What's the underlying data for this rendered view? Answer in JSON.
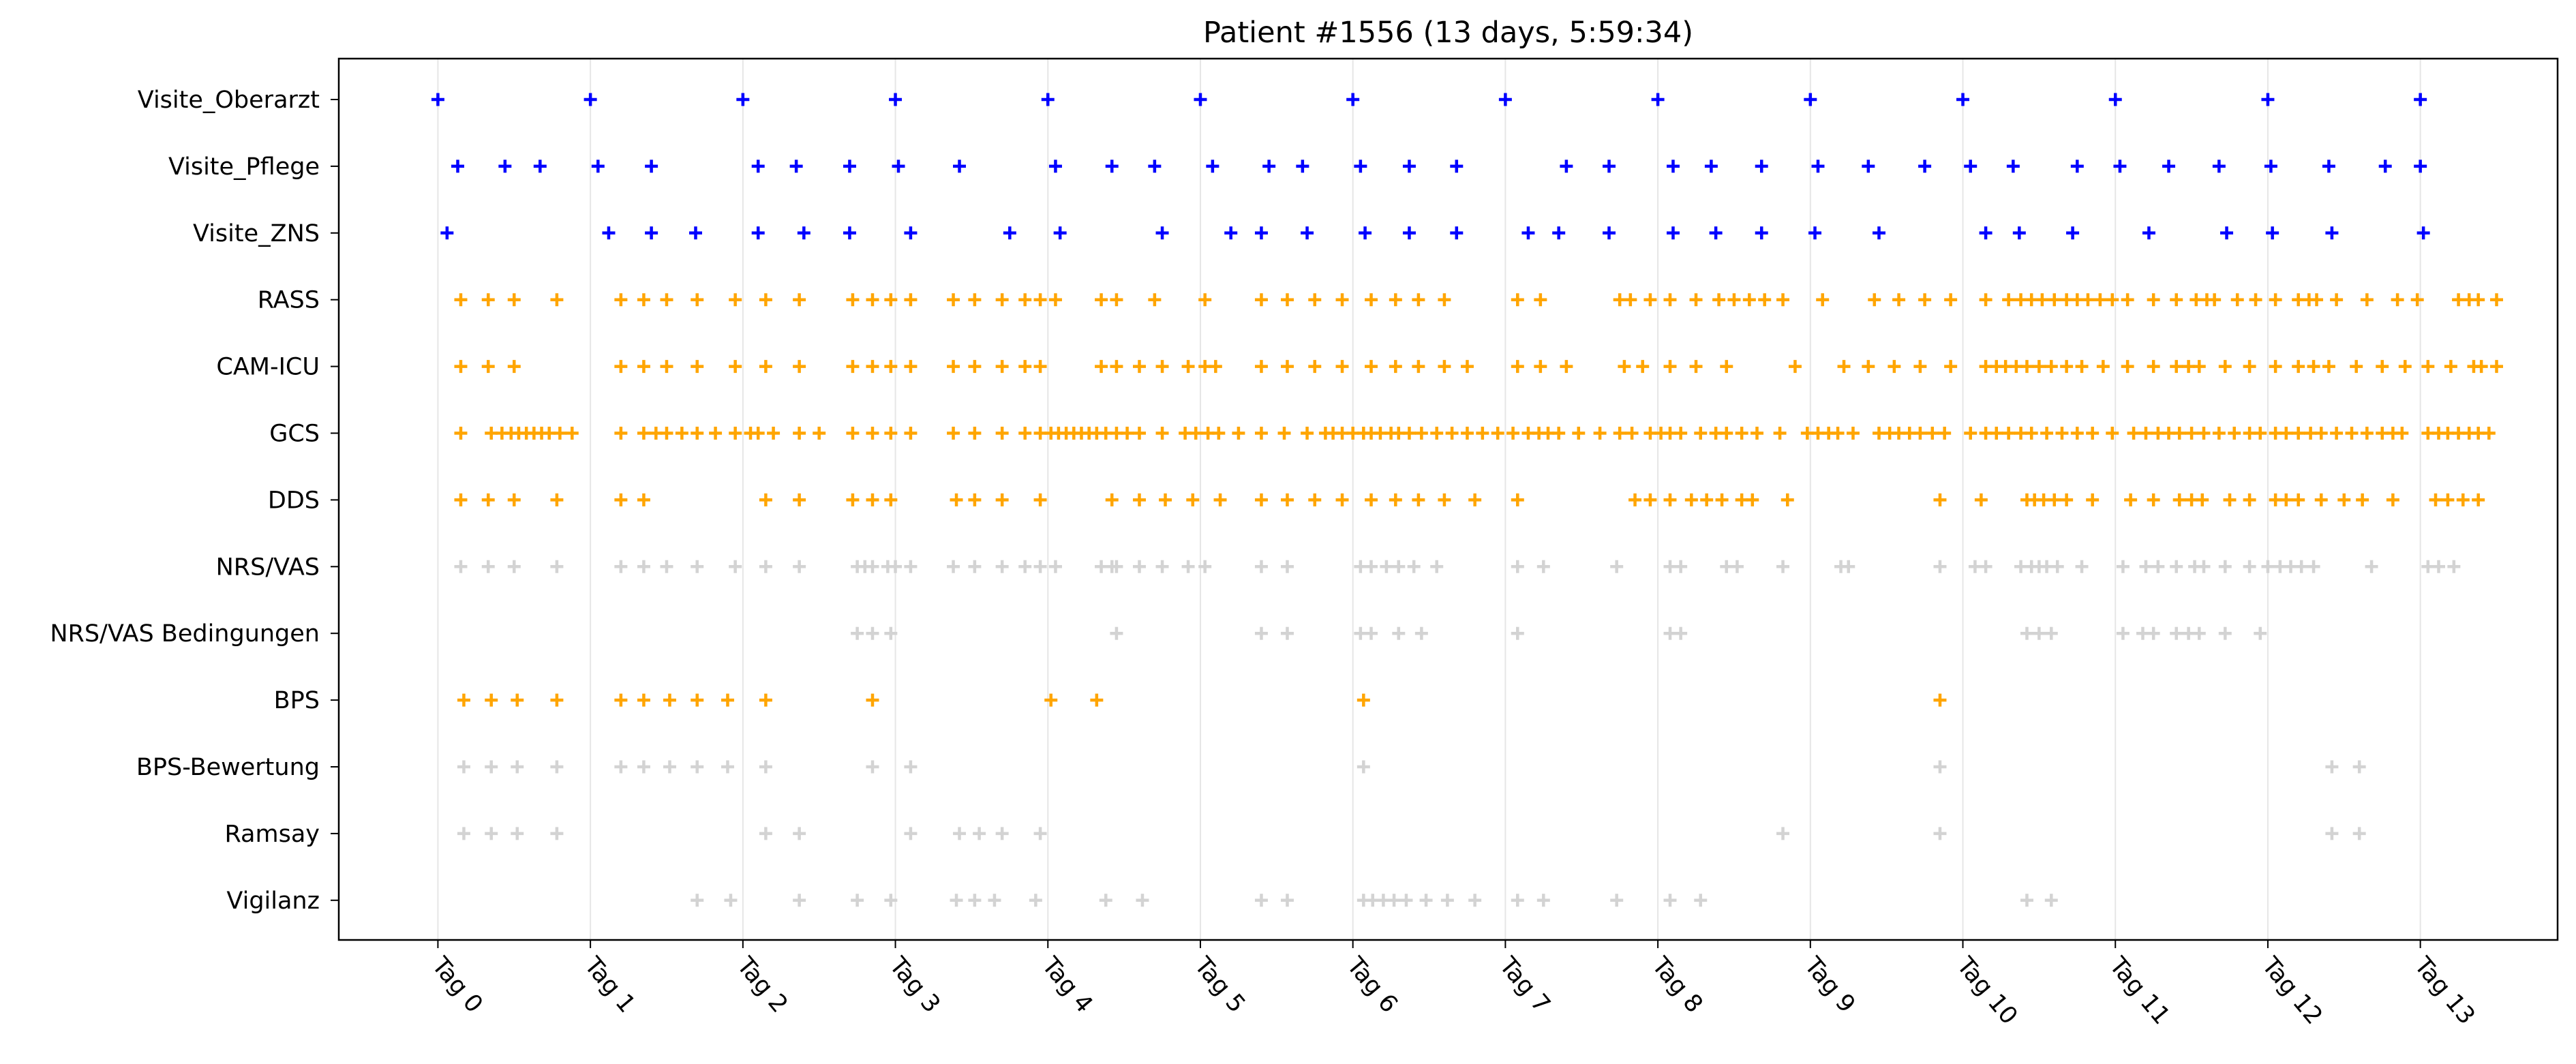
{
  "chart_data": {
    "type": "scatter",
    "title": "Patient #1556 (13 days, 5:59:34)",
    "xlabel": "",
    "ylabel": "",
    "marker": "+",
    "grid": "vertical at day ticks",
    "legend": "none",
    "x_unit": "days",
    "xlim": [
      -0.65,
      13.9
    ],
    "x_ticks": [
      {
        "value": 0,
        "label": "Tag 0"
      },
      {
        "value": 1,
        "label": "Tag 1"
      },
      {
        "value": 2,
        "label": "Tag 2"
      },
      {
        "value": 3,
        "label": "Tag 3"
      },
      {
        "value": 4,
        "label": "Tag 4"
      },
      {
        "value": 5,
        "label": "Tag 5"
      },
      {
        "value": 6,
        "label": "Tag 6"
      },
      {
        "value": 7,
        "label": "Tag 7"
      },
      {
        "value": 8,
        "label": "Tag 8"
      },
      {
        "value": 9,
        "label": "Tag 9"
      },
      {
        "value": 10,
        "label": "Tag 10"
      },
      {
        "value": 11,
        "label": "Tag 11"
      },
      {
        "value": 12,
        "label": "Tag 12"
      },
      {
        "value": 13,
        "label": "Tag 13"
      }
    ],
    "colors": {
      "blue": "#0000ff",
      "orange": "#ffa500",
      "gray": "#d3d3d3"
    },
    "series": [
      {
        "name": "Visite_Oberarzt",
        "color": "#0000ff",
        "x": [
          0.0,
          1.0,
          2.0,
          3.0,
          4.0,
          5.0,
          6.0,
          7.0,
          8.0,
          9.0,
          10.0,
          11.0,
          12.0,
          13.0
        ]
      },
      {
        "name": "Visite_Pflege",
        "color": "#0000ff",
        "x": [
          0.13,
          0.44,
          0.67,
          1.05,
          1.4,
          2.1,
          2.35,
          2.7,
          3.02,
          3.42,
          4.05,
          4.42,
          4.7,
          5.08,
          5.45,
          5.67,
          6.05,
          6.37,
          6.68,
          7.4,
          7.68,
          8.1,
          8.35,
          8.68,
          9.05,
          9.38,
          9.75,
          10.05,
          10.33,
          10.75,
          11.03,
          11.35,
          11.68,
          12.02,
          12.4,
          12.77,
          13.0
        ]
      },
      {
        "name": "Visite_ZNS",
        "color": "#0000ff",
        "x": [
          0.06,
          1.12,
          1.4,
          1.69,
          2.1,
          2.4,
          2.7,
          3.1,
          3.75,
          4.08,
          4.75,
          5.2,
          5.4,
          5.7,
          6.08,
          6.37,
          6.68,
          7.15,
          7.35,
          7.68,
          8.1,
          8.38,
          8.68,
          9.03,
          9.45,
          10.15,
          10.37,
          10.72,
          11.22,
          11.73,
          12.03,
          12.42,
          13.02
        ]
      },
      {
        "name": "RASS",
        "color": "#ffa500",
        "x": [
          0.15,
          0.33,
          0.5,
          0.78,
          1.2,
          1.35,
          1.5,
          1.7,
          1.95,
          2.15,
          2.37,
          2.72,
          2.85,
          2.97,
          3.1,
          3.38,
          3.52,
          3.7,
          3.85,
          3.95,
          4.05,
          4.35,
          4.45,
          4.7,
          5.03,
          5.4,
          5.57,
          5.75,
          5.93,
          6.12,
          6.28,
          6.43,
          6.6,
          7.08,
          7.23,
          7.75,
          7.82,
          7.95,
          8.08,
          8.25,
          8.4,
          8.5,
          8.6,
          8.7,
          8.82,
          9.08,
          9.42,
          9.58,
          9.75,
          9.92,
          10.15,
          10.3,
          10.38,
          10.45,
          10.52,
          10.6,
          10.68,
          10.75,
          10.82,
          10.9,
          10.98,
          11.08,
          11.25,
          11.4,
          11.53,
          11.6,
          11.65,
          11.8,
          11.92,
          12.05,
          12.2,
          12.27,
          12.32,
          12.45,
          12.65,
          12.85,
          12.98,
          13.25,
          13.32,
          13.38,
          13.5
        ]
      },
      {
        "name": "CAM-ICU",
        "color": "#ffa500",
        "x": [
          0.15,
          0.33,
          0.5,
          1.2,
          1.35,
          1.5,
          1.7,
          1.95,
          2.15,
          2.37,
          2.72,
          2.85,
          2.97,
          3.1,
          3.38,
          3.52,
          3.7,
          3.85,
          3.95,
          4.35,
          4.45,
          4.6,
          4.75,
          4.92,
          5.03,
          5.1,
          5.4,
          5.57,
          5.75,
          5.93,
          6.12,
          6.28,
          6.43,
          6.6,
          6.75,
          7.08,
          7.23,
          7.4,
          7.78,
          7.9,
          8.08,
          8.25,
          8.45,
          8.9,
          9.22,
          9.38,
          9.55,
          9.72,
          9.92,
          10.15,
          10.22,
          10.28,
          10.35,
          10.42,
          10.5,
          10.58,
          10.68,
          10.78,
          10.92,
          11.08,
          11.25,
          11.4,
          11.48,
          11.55,
          11.72,
          11.88,
          12.05,
          12.2,
          12.3,
          12.4,
          12.58,
          12.75,
          12.9,
          13.05,
          13.2,
          13.35,
          13.4,
          13.5
        ]
      },
      {
        "name": "GCS",
        "color": "#ffa500",
        "x": [
          0.15,
          0.35,
          0.42,
          0.48,
          0.53,
          0.58,
          0.63,
          0.68,
          0.73,
          0.8,
          0.88,
          1.2,
          1.35,
          1.43,
          1.5,
          1.6,
          1.7,
          1.82,
          1.95,
          2.05,
          2.1,
          2.2,
          2.37,
          2.5,
          2.72,
          2.85,
          2.97,
          3.1,
          3.38,
          3.52,
          3.7,
          3.85,
          3.95,
          4.02,
          4.07,
          4.12,
          4.17,
          4.22,
          4.27,
          4.32,
          4.38,
          4.45,
          4.52,
          4.6,
          4.75,
          4.9,
          4.97,
          5.05,
          5.12,
          5.25,
          5.4,
          5.55,
          5.7,
          5.82,
          5.87,
          5.93,
          6.0,
          6.07,
          6.12,
          6.18,
          6.25,
          6.3,
          6.37,
          6.45,
          6.55,
          6.65,
          6.75,
          6.85,
          6.95,
          7.05,
          7.15,
          7.22,
          7.28,
          7.35,
          7.48,
          7.62,
          7.75,
          7.83,
          7.95,
          8.02,
          8.08,
          8.15,
          8.28,
          8.38,
          8.45,
          8.55,
          8.65,
          8.8,
          8.98,
          9.05,
          9.12,
          9.18,
          9.28,
          9.45,
          9.52,
          9.58,
          9.65,
          9.72,
          9.8,
          9.88,
          10.05,
          10.15,
          10.22,
          10.3,
          10.38,
          10.45,
          10.55,
          10.65,
          10.75,
          10.85,
          10.98,
          11.12,
          11.2,
          11.28,
          11.35,
          11.42,
          11.5,
          11.58,
          11.68,
          11.78,
          11.88,
          11.95,
          12.05,
          12.12,
          12.2,
          12.28,
          12.35,
          12.45,
          12.55,
          12.65,
          12.75,
          12.82,
          12.88,
          13.05,
          13.12,
          13.18,
          13.25,
          13.32,
          13.38,
          13.45
        ]
      },
      {
        "name": "DDS",
        "color": "#ffa500",
        "x": [
          0.15,
          0.33,
          0.5,
          0.78,
          1.2,
          1.35,
          2.15,
          2.37,
          2.72,
          2.85,
          2.97,
          3.4,
          3.52,
          3.7,
          3.95,
          4.42,
          4.6,
          4.77,
          4.95,
          5.13,
          5.4,
          5.57,
          5.75,
          5.93,
          6.12,
          6.28,
          6.43,
          6.6,
          6.8,
          7.08,
          7.85,
          7.95,
          8.08,
          8.22,
          8.32,
          8.42,
          8.55,
          8.62,
          8.85,
          9.85,
          10.12,
          10.42,
          10.47,
          10.53,
          10.6,
          10.68,
          10.85,
          11.1,
          11.25,
          11.42,
          11.5,
          11.57,
          11.75,
          11.88,
          12.05,
          12.12,
          12.2,
          12.35,
          12.5,
          12.62,
          12.82,
          13.1,
          13.18,
          13.28,
          13.38
        ]
      },
      {
        "name": "NRS/VAS",
        "color": "#d3d3d3",
        "x": [
          0.15,
          0.33,
          0.5,
          0.78,
          1.2,
          1.35,
          1.5,
          1.7,
          1.95,
          2.15,
          2.37,
          2.75,
          2.8,
          2.85,
          2.95,
          3.0,
          3.1,
          3.38,
          3.52,
          3.7,
          3.85,
          3.95,
          4.05,
          4.35,
          4.42,
          4.45,
          4.6,
          4.75,
          4.92,
          5.03,
          5.4,
          5.57,
          6.05,
          6.12,
          6.22,
          6.3,
          6.4,
          6.55,
          7.08,
          7.25,
          7.73,
          8.08,
          8.15,
          8.45,
          8.52,
          8.82,
          9.2,
          9.25,
          9.85,
          10.08,
          10.15,
          10.38,
          10.45,
          10.5,
          10.55,
          10.62,
          10.78,
          11.05,
          11.2,
          11.28,
          11.4,
          11.52,
          11.58,
          11.72,
          11.88,
          12.0,
          12.08,
          12.15,
          12.22,
          12.3,
          12.68,
          13.05,
          13.12,
          13.22
        ]
      },
      {
        "name": "NRS/VAS Bedingungen",
        "color": "#d3d3d3",
        "x": [
          2.75,
          2.85,
          2.97,
          4.45,
          5.4,
          5.57,
          6.05,
          6.12,
          6.3,
          6.45,
          7.08,
          8.08,
          8.15,
          10.42,
          10.5,
          10.58,
          11.05,
          11.18,
          11.25,
          11.4,
          11.48,
          11.55,
          11.72,
          11.95
        ]
      },
      {
        "name": "BPS",
        "color": "#ffa500",
        "x": [
          0.17,
          0.35,
          0.52,
          0.78,
          1.2,
          1.35,
          1.52,
          1.7,
          1.9,
          2.15,
          2.85,
          4.02,
          4.32,
          6.07,
          9.85
        ]
      },
      {
        "name": "BPS-Bewertung",
        "color": "#d3d3d3",
        "x": [
          0.17,
          0.35,
          0.52,
          0.78,
          1.2,
          1.35,
          1.52,
          1.7,
          1.9,
          2.15,
          2.85,
          3.1,
          6.07,
          9.85,
          12.42,
          12.6
        ]
      },
      {
        "name": "Ramsay",
        "color": "#d3d3d3",
        "x": [
          0.17,
          0.35,
          0.52,
          0.78,
          2.15,
          2.37,
          3.1,
          3.42,
          3.55,
          3.7,
          3.95,
          8.82,
          9.85,
          12.42,
          12.6
        ]
      },
      {
        "name": "Vigilanz",
        "color": "#d3d3d3",
        "x": [
          1.7,
          1.92,
          2.37,
          2.75,
          2.97,
          3.4,
          3.52,
          3.65,
          3.92,
          4.38,
          4.62,
          5.4,
          5.57,
          6.07,
          6.13,
          6.2,
          6.27,
          6.35,
          6.48,
          6.62,
          6.8,
          7.08,
          7.25,
          7.73,
          8.08,
          8.28,
          10.42,
          10.58
        ]
      }
    ]
  }
}
